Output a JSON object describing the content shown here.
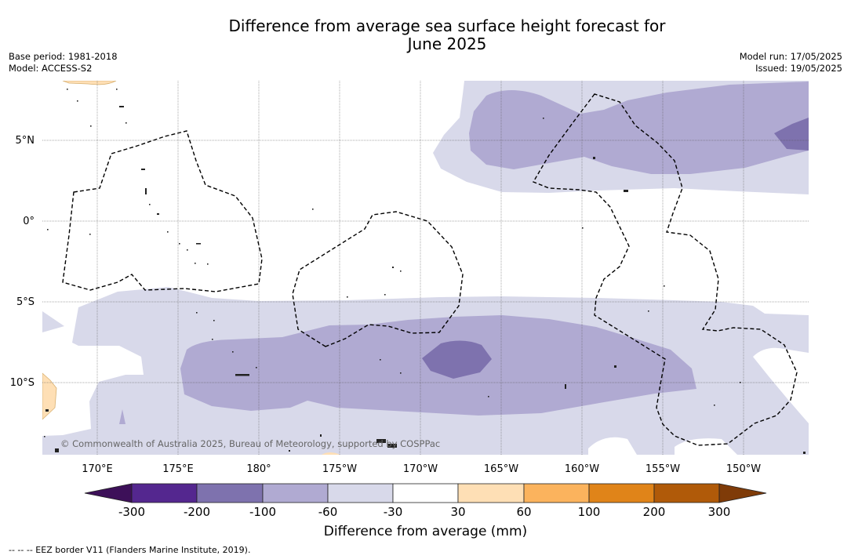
{
  "title_line1": "Difference from average sea surface height forecast for",
  "title_line2": "June 2025",
  "meta": {
    "base_period": "Base period: 1981-2018",
    "model": "Model: ACCESS-S2",
    "model_run": "Model run: 17/05/2025",
    "issued": "Issued: 19/05/2025"
  },
  "map": {
    "lat_labels": [
      "5°N",
      "0°",
      "5°S",
      "10°S"
    ],
    "lon_labels": [
      "170°E",
      "175°E",
      "180°",
      "175°W",
      "170°W",
      "165°W",
      "160°W",
      "155°W",
      "150°W"
    ],
    "copyright": "© Commonwealth of Australia 2025, Bureau of Meteorology, supported by COSPPac"
  },
  "colorbar": {
    "label": "Difference from average (mm)",
    "ticks": [
      "-300",
      "-200",
      "-100",
      "-60",
      "-30",
      "30",
      "60",
      "100",
      "200",
      "300"
    ],
    "colors": [
      "#3d1059",
      "#54278f",
      "#7e72ae",
      "#b0aad2",
      "#d8d9ea",
      "#ffffff",
      "#fedfb5",
      "#fbb35d",
      "#e08419",
      "#b05a09",
      "#7f3b08"
    ]
  },
  "footnote": "--  --  -- EEZ border V11 (Flanders Marine Institute, 2019)."
}
